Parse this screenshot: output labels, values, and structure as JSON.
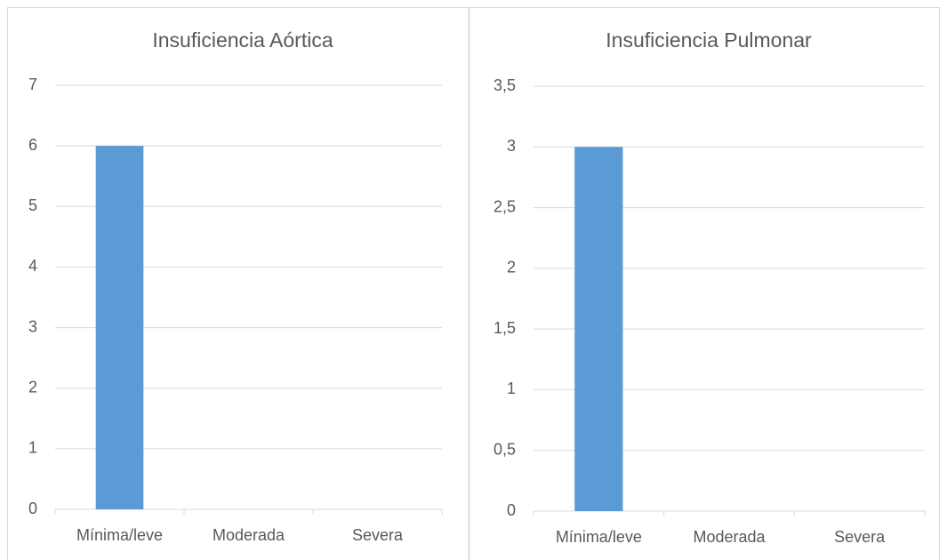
{
  "chart_data": [
    {
      "type": "bar",
      "title": "Insuficiencia Aórtica",
      "categories": [
        "Mínima/leve",
        "Moderada",
        "Severa"
      ],
      "values": [
        6,
        0,
        0
      ],
      "color": "#5b9bd5",
      "ylim": [
        0,
        7
      ],
      "yticks": [
        0,
        1,
        2,
        3,
        4,
        5,
        6,
        7
      ],
      "grid": true
    },
    {
      "type": "bar",
      "title": "Insuficiencia Pulmonar",
      "categories": [
        "Mínima/leve",
        "Moderada",
        "Severa"
      ],
      "values": [
        3,
        0,
        0
      ],
      "color": "#5b9bd5",
      "ylim": [
        0,
        3.5
      ],
      "yticks": [
        0,
        {
          "value": 0.5,
          "label": "0,5"
        },
        1,
        {
          "value": 1.5,
          "label": "1,5"
        },
        2,
        {
          "value": 2.5,
          "label": "2,5"
        },
        3,
        {
          "value": 3.5,
          "label": "3,5"
        }
      ],
      "grid": true
    }
  ]
}
